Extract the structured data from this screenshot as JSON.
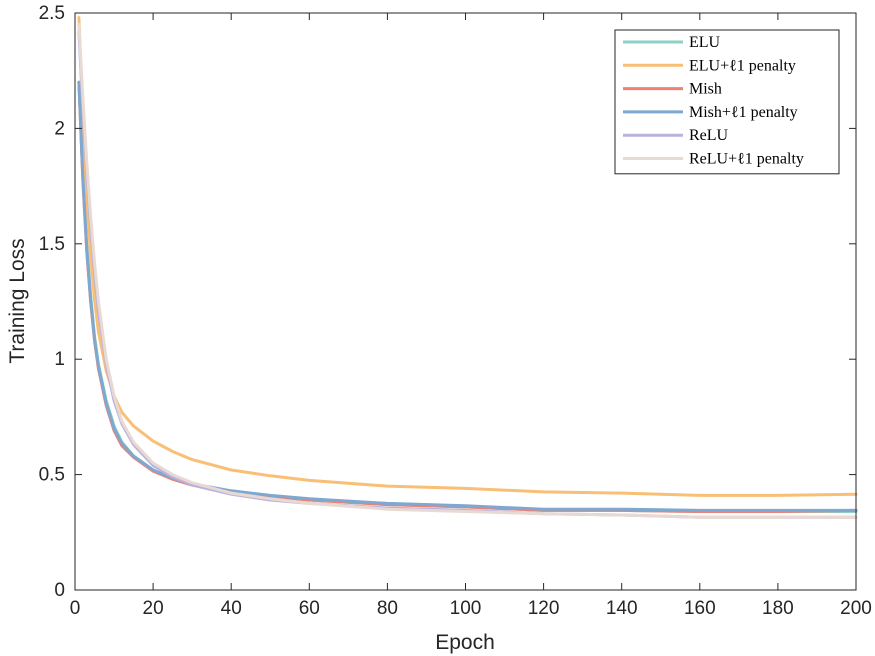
{
  "chart_data": {
    "type": "line",
    "title": "",
    "xlabel": "Epoch",
    "ylabel": "Training Loss",
    "xlim": [
      0,
      200
    ],
    "ylim": [
      0,
      2.5
    ],
    "xticks": [
      "0",
      "20",
      "40",
      "60",
      "80",
      "100",
      "120",
      "140",
      "160",
      "180",
      "200"
    ],
    "yticks": [
      "0",
      "0.5",
      "1",
      "1.5",
      "2",
      "2.5"
    ],
    "grid": false,
    "legend_position": "top-right",
    "x": [
      1,
      2,
      3,
      4,
      5,
      6,
      8,
      10,
      12,
      15,
      20,
      25,
      30,
      40,
      50,
      60,
      80,
      100,
      120,
      140,
      160,
      180,
      200
    ],
    "series": [
      {
        "name": "ELU",
        "color": "#8fd1c6",
        "values": [
          2.2,
          1.8,
          1.5,
          1.28,
          1.1,
          0.98,
          0.82,
          0.71,
          0.64,
          0.58,
          0.52,
          0.48,
          0.455,
          0.425,
          0.405,
          0.39,
          0.37,
          0.36,
          0.345,
          0.345,
          0.34,
          0.34,
          0.34
        ]
      },
      {
        "name": "ELU+ℓ1 penalty",
        "color": "#f8bf75",
        "values": [
          2.48,
          2.05,
          1.7,
          1.45,
          1.26,
          1.12,
          0.95,
          0.84,
          0.77,
          0.71,
          0.645,
          0.6,
          0.565,
          0.52,
          0.495,
          0.475,
          0.45,
          0.44,
          0.425,
          0.42,
          0.41,
          0.41,
          0.415
        ]
      },
      {
        "name": "Mish",
        "color": "#f08074",
        "values": [
          2.2,
          1.78,
          1.47,
          1.25,
          1.08,
          0.96,
          0.8,
          0.69,
          0.625,
          0.575,
          0.515,
          0.48,
          0.455,
          0.425,
          0.405,
          0.39,
          0.37,
          0.36,
          0.345,
          0.345,
          0.34,
          0.34,
          0.345
        ]
      },
      {
        "name": "Mish+ℓ1 penalty",
        "color": "#7ea8cf",
        "values": [
          2.2,
          1.79,
          1.48,
          1.26,
          1.09,
          0.97,
          0.81,
          0.7,
          0.635,
          0.58,
          0.52,
          0.485,
          0.46,
          0.43,
          0.41,
          0.395,
          0.375,
          0.365,
          0.35,
          0.35,
          0.345,
          0.345,
          0.345
        ]
      },
      {
        "name": "ReLU",
        "color": "#bbb1dc",
        "values": [
          2.42,
          2.1,
          1.82,
          1.58,
          1.38,
          1.21,
          0.98,
          0.82,
          0.72,
          0.63,
          0.54,
          0.49,
          0.455,
          0.415,
          0.39,
          0.375,
          0.355,
          0.345,
          0.33,
          0.325,
          0.315,
          0.315,
          0.315
        ]
      },
      {
        "name": "ReLU+ℓ1 penalty",
        "color": "#e8d9d3",
        "values": [
          2.45,
          2.14,
          1.86,
          1.62,
          1.42,
          1.25,
          1.0,
          0.84,
          0.73,
          0.64,
          0.55,
          0.5,
          0.465,
          0.42,
          0.395,
          0.375,
          0.35,
          0.34,
          0.33,
          0.325,
          0.315,
          0.315,
          0.315
        ]
      }
    ]
  }
}
